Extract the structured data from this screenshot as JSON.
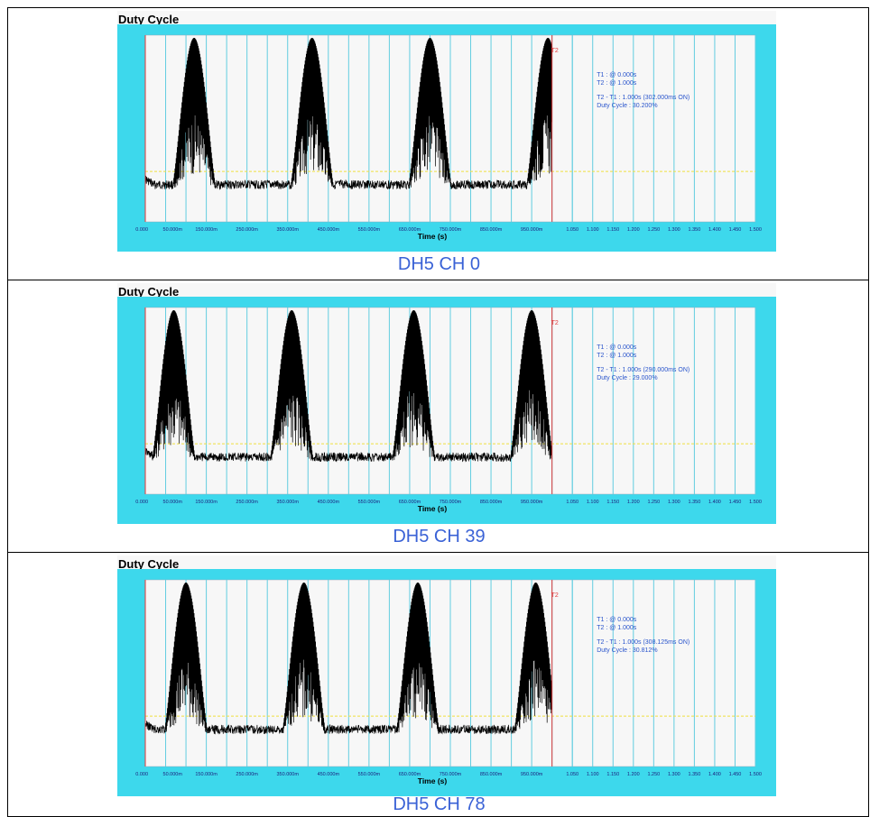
{
  "panels": [
    {
      "heading": "Duty Cycle",
      "caption": "DH5 CH 0",
      "chart_data": {
        "type": "line",
        "title": "Duty Cycle",
        "xlabel": "Time (s)",
        "xlim": [
          0,
          1.5
        ],
        "x_tick_labels": [
          "0.000",
          "50.000m",
          "150.000m",
          "250.000m",
          "350.000m",
          "450.000m",
          "550.000m",
          "650.000m",
          "750.000m",
          "850.000m",
          "950.000m",
          "1.050",
          "1.100",
          "1.150",
          "1.200",
          "1.250",
          "1.300",
          "1.350",
          "1.400",
          "1.450",
          "1.500"
        ],
        "bursts_center_s": [
          0.12,
          0.41,
          0.7,
          0.99
        ],
        "cursors": [
          {
            "name": "T1",
            "label": "",
            "t_s": 0.0
          },
          {
            "name": "T2",
            "label": "T2",
            "t_s": 1.0
          }
        ],
        "annotations": [
          "T1 : @ 0.000s",
          "T2 : @ 1.000s",
          "T2 - T1 : 1.000s (302.000ms ON)",
          "Duty Cycle : 30.200%"
        ],
        "duty_cycle_percent": 30.2,
        "on_time_ms": 302.0
      }
    },
    {
      "heading": "Duty Cycle",
      "caption": "DH5 CH 39",
      "chart_data": {
        "type": "line",
        "title": "Duty Cycle",
        "xlabel": "Time (s)",
        "xlim": [
          0,
          1.5
        ],
        "x_tick_labels": [
          "0.000",
          "50.000m",
          "150.000m",
          "250.000m",
          "350.000m",
          "450.000m",
          "550.000m",
          "650.000m",
          "750.000m",
          "850.000m",
          "950.000m",
          "1.050",
          "1.100",
          "1.150",
          "1.200",
          "1.250",
          "1.300",
          "1.350",
          "1.400",
          "1.450",
          "1.500"
        ],
        "bursts_center_s": [
          0.07,
          0.36,
          0.66,
          0.95
        ],
        "cursors": [
          {
            "name": "T1",
            "label": "",
            "t_s": 0.0
          },
          {
            "name": "T2",
            "label": "T2",
            "t_s": 1.0
          }
        ],
        "annotations": [
          "T1 : @ 0.000s",
          "T2 : @ 1.000s",
          "T2 - T1 : 1.000s (290.000ms ON)",
          "Duty Cycle : 29.000%"
        ],
        "duty_cycle_percent": 29.0,
        "on_time_ms": 290.0
      }
    },
    {
      "heading": "Duty Cycle",
      "caption": "DH5 CH 78",
      "chart_data": {
        "type": "line",
        "title": "Duty Cycle",
        "xlabel": "Time (s)",
        "xlim": [
          0,
          1.5
        ],
        "x_tick_labels": [
          "0.000",
          "50.000m",
          "150.000m",
          "250.000m",
          "350.000m",
          "450.000m",
          "550.000m",
          "650.000m",
          "750.000m",
          "850.000m",
          "950.000m",
          "1.050",
          "1.100",
          "1.150",
          "1.200",
          "1.250",
          "1.300",
          "1.350",
          "1.400",
          "1.450",
          "1.500"
        ],
        "bursts_center_s": [
          0.1,
          0.39,
          0.67,
          0.96
        ],
        "cursors": [
          {
            "name": "T1",
            "label": "",
            "t_s": 0.0
          },
          {
            "name": "T2",
            "label": "T2",
            "t_s": 1.0
          }
        ],
        "annotations": [
          "T1 : @ 0.000s",
          "T2 : @ 1.000s",
          "T2 - T1 : 1.000s (308.125ms ON)",
          "Duty Cycle : 30.812%"
        ],
        "duty_cycle_percent": 30.812,
        "on_time_ms": 308.125
      }
    }
  ],
  "colors": {
    "frame": "#3dd8ec",
    "plot_bg": "#f7f7f7",
    "grid": "#62cde0",
    "trace": "#000000",
    "cursor": "#e23a3a",
    "threshold": "#f0e040",
    "annotation": "#2a55cc",
    "caption": "#3a62d6"
  }
}
